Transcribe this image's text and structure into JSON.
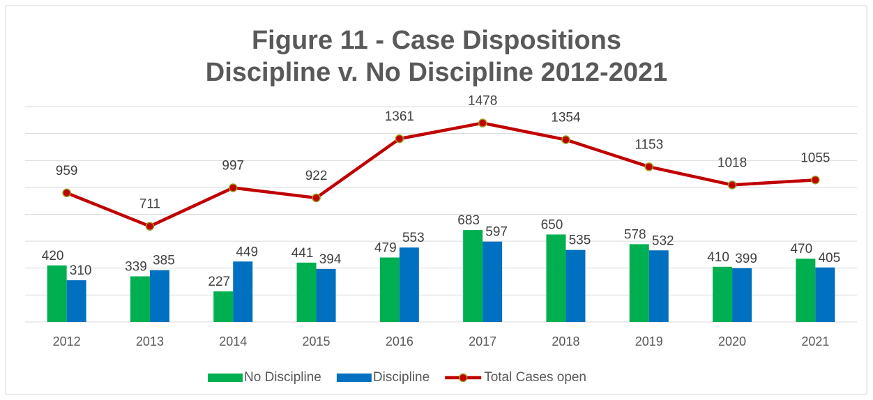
{
  "chart_data": {
    "type": "bar_line",
    "title": [
      "Figure 11 - Case Dispositions",
      "Discipline v. No Discipline 2012-2021"
    ],
    "categories": [
      "2012",
      "2013",
      "2014",
      "2015",
      "2016",
      "2017",
      "2018",
      "2019",
      "2020",
      "2021"
    ],
    "series": [
      {
        "name": "No Discipline",
        "type": "bar",
        "color": "#00b050",
        "values": [
          420,
          339,
          227,
          441,
          479,
          683,
          650,
          578,
          410,
          470
        ]
      },
      {
        "name": "Discipline",
        "type": "bar",
        "color": "#0070c0",
        "values": [
          310,
          385,
          449,
          394,
          553,
          597,
          535,
          532,
          399,
          405
        ]
      },
      {
        "name": "Total Cases open",
        "type": "line",
        "color": "#c00000",
        "values": [
          959,
          711,
          997,
          922,
          1361,
          1478,
          1354,
          1153,
          1018,
          1055
        ]
      }
    ],
    "ylim": [
      0,
      1600
    ],
    "yticks": [
      0,
      200,
      400,
      600,
      800,
      1000,
      1200,
      1400,
      1600
    ],
    "grid": true,
    "legend": "bottom"
  }
}
